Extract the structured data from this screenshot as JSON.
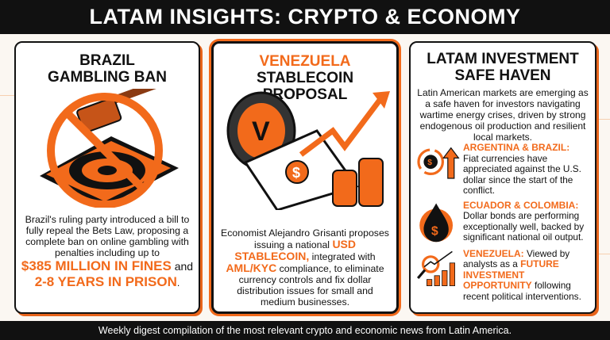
{
  "header": {
    "title": "LATAM INSIGHTS: CRYPTO & ECONOMY"
  },
  "panels": {
    "brazil": {
      "title_line1": "BRAZIL",
      "title_line2": "GAMBLING BAN",
      "body": "Brazil's ruling party introduced a bill to fully repeal the Bets Law, proposing a complete ban on online gambling with penalties including up to",
      "highlight1": "$385 MILLION IN FINES",
      "connector": " and",
      "highlight2": "2-8 YEARS IN PRISON",
      "end": "."
    },
    "venezuela": {
      "title_line1": "VENEZUELA",
      "title_line2": "STABLECOIN PROPOSAL",
      "body1": "Economist Alejandro Grisanti proposes issuing a national ",
      "highlight1": "USD STABLECOIN,",
      "body2": " integrated with ",
      "highlight2": "AML/KYC",
      "body3": " compliance, to eliminate currency controls and fix dollar distribution issues for small and medium businesses."
    },
    "latam": {
      "title_line1": "LATAM INVESTMENT",
      "title_line2": "SAFE HAVEN",
      "intro": "Latin American markets are emerging as a safe haven for investors navigating wartime energy crises, driven by strong endogenous oil production and resilient local markets.",
      "items": [
        {
          "heading": "ARGENTINA & BRAZIL:",
          "text": "Fiat currencies have appreciated against the U.S. dollar since the start of the conflict.",
          "icon": "currency-exchange-up-icon"
        },
        {
          "heading": "ECUADOR & COLOMBIA:",
          "text": "Dollar bonds are performing exceptionally well, backed by significant national oil output.",
          "icon": "oil-drop-dollar-icon"
        },
        {
          "heading": "VENEZUELA:",
          "text": " Viewed by analysts as a ",
          "highlight": "FUTURE INVESTMENT OPPORTUNITY",
          "text2": " following recent political interventions.",
          "icon": "magnifier-growth-chart-icon"
        }
      ]
    }
  },
  "footer": {
    "text": "Weekly digest compilation of the most relevant crypto and economic news from Latin America."
  },
  "colors": {
    "accent": "#f26a1b",
    "dark": "#111111",
    "background": "#fbf7f2"
  }
}
